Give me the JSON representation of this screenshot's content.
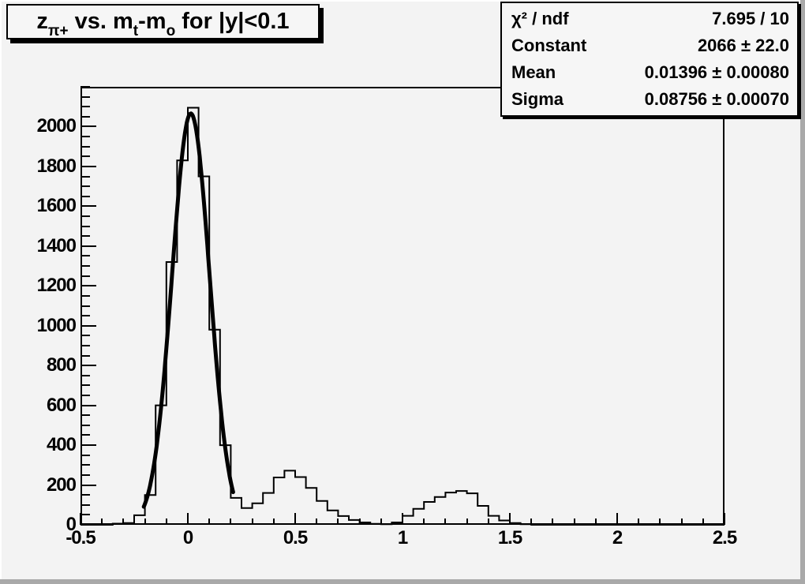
{
  "window": {
    "bg_color": "#f3f3f3",
    "border_shadow_color": "#a9a9a9",
    "line_color": "#000000"
  },
  "title": {
    "full": "z_{π+} vs. m_t-m_o for |y|<0.1",
    "p1": "z",
    "s1": "π+",
    "p2": " vs. m",
    "s2": "t",
    "p3": "-m",
    "s3": "o",
    "p4": " for |y|<0.1"
  },
  "stats": {
    "rows": [
      {
        "label": "χ² / ndf",
        "value": "7.695 / 10"
      },
      {
        "label": "Constant",
        "value": "2066 ± 22.0"
      },
      {
        "label": "Mean",
        "value": "0.01396 ± 0.00080"
      },
      {
        "label": "Sigma",
        "value": "0.08756 ± 0.00070"
      }
    ]
  },
  "chart_data": {
    "type": "bar",
    "variant": "step-histogram",
    "title": "z_{π+} vs. m_t-m_o for |y|<0.1",
    "xlabel": "",
    "ylabel": "",
    "xlim": [
      -0.5,
      2.5
    ],
    "ylim": [
      0,
      2200
    ],
    "grid": false,
    "legend": "none",
    "x_major_ticks": [
      {
        "u": -0.5,
        "label": "-0.5"
      },
      {
        "u": 0,
        "label": "0"
      },
      {
        "u": 0.5,
        "label": "0.5"
      },
      {
        "u": 1,
        "label": "1"
      },
      {
        "u": 1.5,
        "label": "1.5"
      },
      {
        "u": 2,
        "label": "2"
      },
      {
        "u": 2.5,
        "label": "2.5"
      }
    ],
    "x_minor_step": 0.1,
    "y_major_ticks": [
      {
        "v": 0,
        "label": "0"
      },
      {
        "v": 200,
        "label": "200"
      },
      {
        "v": 400,
        "label": "400"
      },
      {
        "v": 600,
        "label": "600"
      },
      {
        "v": 800,
        "label": "800"
      },
      {
        "v": 1000,
        "label": "1000"
      },
      {
        "v": 1200,
        "label": "1200"
      },
      {
        "v": 1400,
        "label": "1400"
      },
      {
        "v": 1600,
        "label": "1600"
      },
      {
        "v": 1800,
        "label": "1800"
      },
      {
        "v": 2000,
        "label": "2000"
      }
    ],
    "y_minor_step": 50,
    "bins": {
      "start": -0.5,
      "width": 0.05,
      "values": [
        0,
        0,
        0,
        6,
        9,
        48,
        150,
        600,
        1320,
        1830,
        2095,
        1750,
        980,
        400,
        135,
        84,
        108,
        160,
        238,
        272,
        240,
        185,
        120,
        72,
        44,
        24,
        12,
        5,
        3,
        12,
        45,
        80,
        115,
        140,
        162,
        170,
        158,
        95,
        45,
        22,
        9,
        3,
        0,
        0,
        0,
        0,
        0,
        0,
        0,
        0,
        0,
        0,
        0,
        0,
        0,
        0,
        0,
        0,
        0,
        0
      ]
    },
    "fit": {
      "shape": "gaussian",
      "chi2": 7.695,
      "ndf": 10,
      "constant": 2066,
      "mean": 0.01396,
      "sigma": 0.08756,
      "draw_range": [
        -0.205,
        0.212
      ],
      "line_width": 5
    },
    "histogram_line_width": 2
  }
}
